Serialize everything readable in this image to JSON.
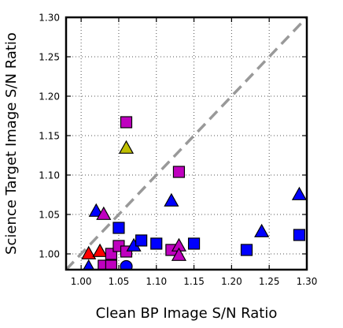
{
  "chart_data": {
    "type": "scatter",
    "xlabel": "Clean BP Image S/N Ratio",
    "ylabel": "Science Target Image S/N Ratio",
    "xlim": [
      0.98,
      1.3
    ],
    "ylim": [
      0.98,
      1.3
    ],
    "x_ticks": [
      "1.00",
      "1.05",
      "1.10",
      "1.15",
      "1.20",
      "1.25",
      "1.30"
    ],
    "y_ticks": [
      "1.00",
      "1.05",
      "1.10",
      "1.15",
      "1.20",
      "1.25",
      "1.30"
    ],
    "x_tick_values": [
      1.0,
      1.05,
      1.1,
      1.15,
      1.2,
      1.25,
      1.3
    ],
    "y_tick_values": [
      1.0,
      1.05,
      1.1,
      1.15,
      1.2,
      1.25,
      1.3
    ],
    "grid": true,
    "reference_line": {
      "style": "dashed",
      "color": "#999999",
      "from": [
        0.98,
        0.98
      ],
      "to": [
        1.3,
        1.3
      ]
    },
    "points": [
      {
        "x": 1.01,
        "y": 0.983,
        "shape": "triangle",
        "color": "#0000ff"
      },
      {
        "x": 1.01,
        "y": 1.0,
        "shape": "triangle",
        "color": "#ff0000"
      },
      {
        "x": 1.025,
        "y": 1.003,
        "shape": "triangle",
        "color": "#ff0000"
      },
      {
        "x": 1.02,
        "y": 1.054,
        "shape": "triangle",
        "color": "#0000ff"
      },
      {
        "x": 1.03,
        "y": 1.05,
        "shape": "triangle",
        "color": "#bf00bf"
      },
      {
        "x": 1.04,
        "y": 1.0,
        "shape": "square",
        "color": "#bf00bf"
      },
      {
        "x": 1.03,
        "y": 0.985,
        "shape": "square",
        "color": "#bf00bf"
      },
      {
        "x": 1.04,
        "y": 0.985,
        "shape": "square",
        "color": "#bf00bf"
      },
      {
        "x": 1.05,
        "y": 1.01,
        "shape": "square",
        "color": "#bf00bf"
      },
      {
        "x": 1.05,
        "y": 1.033,
        "shape": "square",
        "color": "#0000ff"
      },
      {
        "x": 1.06,
        "y": 1.003,
        "shape": "square",
        "color": "#bf00bf"
      },
      {
        "x": 1.06,
        "y": 0.984,
        "shape": "circle",
        "color": "#0000ff"
      },
      {
        "x": 1.07,
        "y": 1.01,
        "shape": "triangle",
        "color": "#0000ff"
      },
      {
        "x": 1.08,
        "y": 1.017,
        "shape": "square",
        "color": "#0000ff"
      },
      {
        "x": 1.06,
        "y": 1.167,
        "shape": "square",
        "color": "#bf00bf"
      },
      {
        "x": 1.06,
        "y": 1.134,
        "shape": "triangle",
        "color": "#bfbf00"
      },
      {
        "x": 1.1,
        "y": 1.013,
        "shape": "square",
        "color": "#0000ff"
      },
      {
        "x": 1.12,
        "y": 1.067,
        "shape": "triangle",
        "color": "#0000ff"
      },
      {
        "x": 1.12,
        "y": 1.005,
        "shape": "square",
        "color": "#bf00bf"
      },
      {
        "x": 1.13,
        "y": 1.01,
        "shape": "triangle",
        "color": "#bf00bf"
      },
      {
        "x": 1.13,
        "y": 0.998,
        "shape": "triangle",
        "color": "#bf00bf"
      },
      {
        "x": 1.13,
        "y": 1.104,
        "shape": "square",
        "color": "#bf00bf"
      },
      {
        "x": 1.15,
        "y": 1.013,
        "shape": "square",
        "color": "#0000ff"
      },
      {
        "x": 1.22,
        "y": 1.005,
        "shape": "square",
        "color": "#0000ff"
      },
      {
        "x": 1.24,
        "y": 1.028,
        "shape": "triangle",
        "color": "#0000ff"
      },
      {
        "x": 1.29,
        "y": 1.075,
        "shape": "triangle",
        "color": "#0000ff"
      },
      {
        "x": 1.29,
        "y": 1.024,
        "shape": "square",
        "color": "#0000ff"
      }
    ]
  }
}
